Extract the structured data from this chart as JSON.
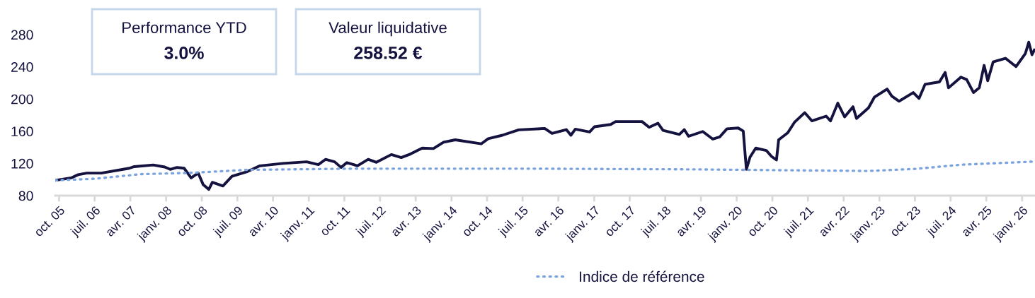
{
  "chart_data": {
    "type": "line",
    "annotations": [
      "Performance YTD",
      "3.0%",
      "Valeur liquidative",
      "258.52 €"
    ],
    "series": [
      {
        "color": "#14123f",
        "line_style": "solid",
        "x": [
          "2005-09-03",
          "2006-01-01",
          "2006-02-24",
          "2006-05-01",
          "2006-08-21",
          "2007-03-24",
          "2007-05-01",
          "2007-09-24",
          "2007-12-21",
          "2008-02-01",
          "2008-03-24",
          "2008-05-18",
          "2008-07-11",
          "2008-09-03",
          "2008-10-12",
          "2008-11-24",
          "2008-12-21",
          "2009-03-12",
          "2009-05-21",
          "2009-09-18",
          "2009-12-21",
          "2010-06-18",
          "2010-12-15",
          "2011-03-15",
          "2011-05-09",
          "2011-07-18",
          "2011-09-06",
          "2011-10-20",
          "2011-12-12",
          "2012-01-09",
          "2012-04-01",
          "2012-06-03",
          "2012-09-26",
          "2012-12-11",
          "2013-02-20",
          "2013-05-21",
          "2013-08-15",
          "2013-11-01",
          "2014-01-30",
          "2014-08-17",
          "2014-10-10",
          "2015-01-27",
          "2015-06-01",
          "2015-12-18",
          "2016-02-12",
          "2016-06-01",
          "2016-07-06",
          "2016-08-09",
          "2016-11-27",
          "2017-01-03",
          "2017-05-08",
          "2017-06-15",
          "2018-01-03",
          "2018-02-27",
          "2018-05-06",
          "2018-06-14",
          "2018-10-17",
          "2018-11-24",
          "2018-12-27",
          "2019-04-15",
          "2019-07-01",
          "2019-08-24",
          "2019-10-18",
          "2020-01-12",
          "2020-02-20",
          "2020-03-15",
          "2020-04-12",
          "2020-05-26",
          "2020-08-15",
          "2020-09-24",
          "2020-11-01",
          "2020-11-18",
          "2021-01-27",
          "2021-03-21",
          "2021-06-06",
          "2021-08-01",
          "2021-11-18",
          "2021-12-21",
          "2022-02-15",
          "2022-04-09",
          "2022-06-12",
          "2022-07-09",
          "2022-10-09",
          "2022-11-23",
          "2023-03-01",
          "2023-04-06",
          "2023-06-01",
          "2023-09-18",
          "2023-11-01",
          "2023-12-18",
          "2024-04-06",
          "2024-05-20",
          "2024-06-15",
          "2024-09-18",
          "2024-11-01",
          "2024-12-24",
          "2025-02-06",
          "2025-03-15",
          "2025-04-12",
          "2025-05-24",
          "2025-08-26",
          "2025-11-15",
          "2026-01-26",
          "2026-02-21",
          "2026-03-18",
          "2026-04-05"
        ],
        "values": [
          99,
          102,
          106,
          108,
          108,
          114,
          116,
          118,
          115.5,
          112.6,
          115,
          114,
          102,
          108,
          93.5,
          87.7,
          96.5,
          92,
          104,
          110,
          117,
          120,
          122,
          118.5,
          125,
          122,
          115,
          121,
          118.5,
          117,
          125,
          121.4,
          131,
          127.3,
          131.7,
          139,
          138.4,
          146.3,
          149.3,
          144.3,
          150.7,
          155,
          161.7,
          163.4,
          157.3,
          162,
          155,
          162.5,
          159,
          165.5,
          168.4,
          172,
          172,
          164.8,
          169.9,
          161,
          156,
          162,
          153.7,
          159.6,
          150.2,
          153,
          163,
          164,
          160.2,
          112.6,
          127.8,
          139,
          136.1,
          128.7,
          124.3,
          149.3,
          158.1,
          171.4,
          183,
          172.8,
          178.7,
          172.8,
          194.8,
          177.8,
          190.4,
          175.8,
          189,
          202.2,
          212.4,
          203.6,
          197.2,
          208,
          200.7,
          218.3,
          221.2,
          233,
          213.9,
          227.1,
          224.2,
          208,
          213.9,
          241.8,
          222.7,
          246.2,
          250.6,
          240.3,
          256.5,
          270.6,
          255,
          260.9
        ]
      },
      {
        "name": "Indice de référence",
        "color": "#7ba3e0",
        "line_style": "dotted",
        "x": [
          "2005-09-03",
          "2006-06-27",
          "2007-06-24",
          "2008-06-24",
          "2009-09-18",
          "2011-12-12",
          "2015-08-15",
          "2019-02-01",
          "2021-04-12",
          "2022-10-09",
          "2023-10-03",
          "2024-10-01",
          "2026-04-05"
        ],
        "values": [
          99,
          100.9,
          106.7,
          108.2,
          112,
          113.5,
          113.5,
          112.6,
          111.4,
          110.6,
          113.2,
          118.5,
          122.3
        ]
      }
    ],
    "xlim": [
      "2005-09-01",
      "2026-04-10"
    ],
    "xticks": [
      {
        "value": "2005-10",
        "label": "oct. 05"
      },
      {
        "value": "2006-07",
        "label": "juil. 06"
      },
      {
        "value": "2007-04",
        "label": "avr. 07"
      },
      {
        "value": "2008-01",
        "label": "janv. 08"
      },
      {
        "value": "2008-10",
        "label": "oct. 08"
      },
      {
        "value": "2009-07",
        "label": "juil. 09"
      },
      {
        "value": "2010-04",
        "label": "avr. 10"
      },
      {
        "value": "2011-01",
        "label": "janv. 11"
      },
      {
        "value": "2011-10",
        "label": "oct. 11"
      },
      {
        "value": "2012-07",
        "label": "juil. 12"
      },
      {
        "value": "2013-04",
        "label": "avr. 13"
      },
      {
        "value": "2014-01",
        "label": "janv. 14"
      },
      {
        "value": "2014-10",
        "label": "oct. 14"
      },
      {
        "value": "2015-07",
        "label": "juil. 15"
      },
      {
        "value": "2016-04",
        "label": "avr. 16"
      },
      {
        "value": "2017-01",
        "label": "janv. 17"
      },
      {
        "value": "2017-10",
        "label": "oct. 17"
      },
      {
        "value": "2018-07",
        "label": "juil. 18"
      },
      {
        "value": "2019-04",
        "label": "avr. 19"
      },
      {
        "value": "2020-01",
        "label": "janv. 20"
      },
      {
        "value": "2020-10",
        "label": "oct. 20"
      },
      {
        "value": "2021-07",
        "label": "juil. 21"
      },
      {
        "value": "2022-04",
        "label": "avr. 22"
      },
      {
        "value": "2023-01",
        "label": "janv. 23"
      },
      {
        "value": "2023-10",
        "label": "oct. 23"
      },
      {
        "value": "2024-07",
        "label": "juil. 24"
      },
      {
        "value": "2025-04",
        "label": "avr. 25"
      },
      {
        "value": "2026-01",
        "label": "janv. 26"
      }
    ],
    "ylim": [
      80,
      280
    ],
    "yticks": [
      80,
      120,
      160,
      200,
      240,
      280
    ],
    "grid": false,
    "legend": "bottom",
    "marker": "none"
  }
}
